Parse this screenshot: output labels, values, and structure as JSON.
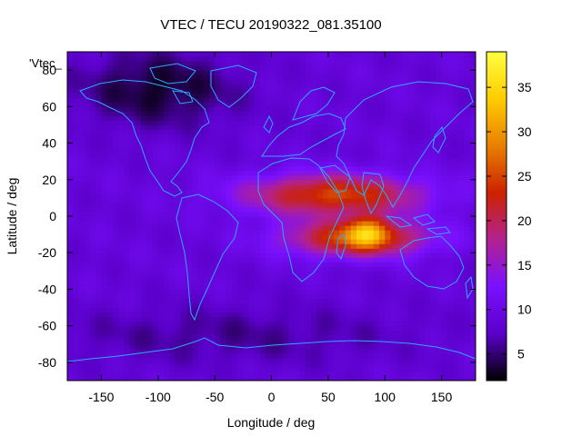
{
  "chart_data": {
    "type": "heatmap",
    "title": "VTEC / TECU 20190322_081.35100",
    "xlabel": "Longitude / deg",
    "ylabel": "Latitude / deg",
    "xlim": [
      -180,
      180
    ],
    "ylim": [
      -90,
      90
    ],
    "xticks": [
      -150,
      -100,
      -50,
      0,
      50,
      100,
      150
    ],
    "yticks": [
      -80,
      -60,
      -40,
      -20,
      0,
      20,
      40,
      60,
      80
    ],
    "key_label": "'Vtec_",
    "colorbar": {
      "min": 2,
      "max": 39,
      "ticks": [
        5,
        10,
        15,
        20,
        25,
        30,
        35
      ],
      "palette": [
        "#000000",
        "#5a00c8",
        "#7a10ff",
        "#b22290",
        "#cc2200",
        "#e88000",
        "#ffcc00",
        "#ffff40"
      ]
    },
    "field": {
      "background": 9,
      "features": [
        {
          "region": "equatorial-anomaly-north",
          "lon": 55,
          "lat": 12,
          "sigma_lon": 55,
          "sigma_lat": 8,
          "vtec": 16
        },
        {
          "region": "equatorial-anomaly-south",
          "lon": 75,
          "lat": -12,
          "sigma_lon": 45,
          "sigma_lat": 7,
          "vtec": 16
        },
        {
          "region": "peak-indian-ocean",
          "lon": 85,
          "lat": -8,
          "sigma_lon": 14,
          "sigma_lat": 6,
          "vtec": 12
        },
        {
          "region": "low-canada-arctic",
          "lon": -100,
          "lat": 70,
          "sigma_lon": 50,
          "sigma_lat": 15,
          "vtec": -6
        },
        {
          "region": "low-southern-ocean",
          "lon": -40,
          "lat": -65,
          "sigma_lon": 120,
          "sigma_lat": 12,
          "vtec": -3
        }
      ]
    }
  }
}
